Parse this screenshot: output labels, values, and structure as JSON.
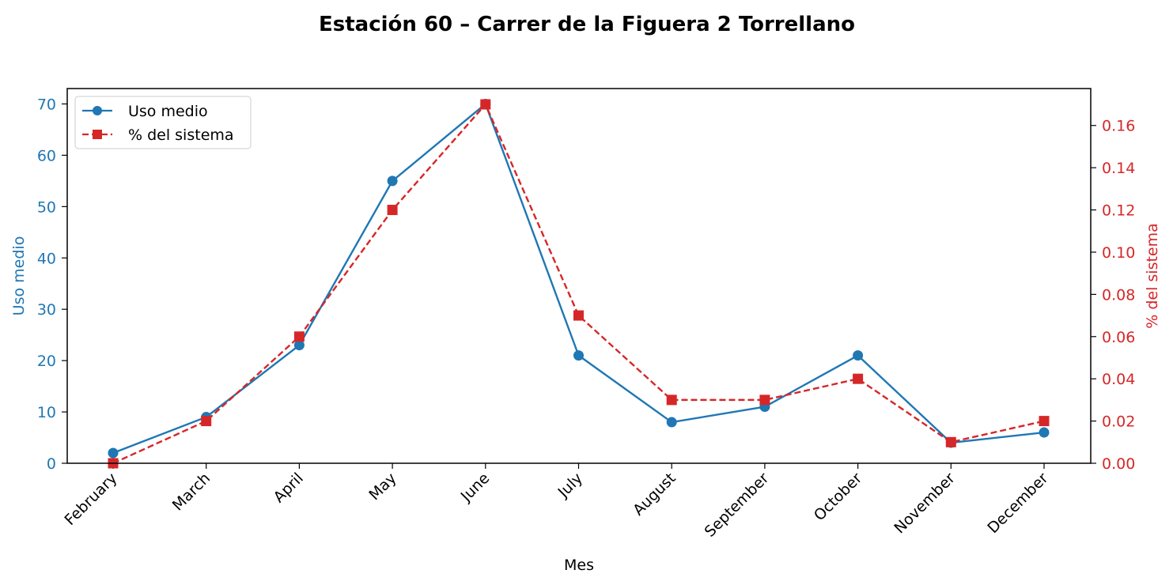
{
  "chart_data": {
    "type": "line",
    "title": "Estación 60 – Carrer de la Figuera 2 Torrellano",
    "xlabel": "Mes",
    "ylabel_left": "Uso medio",
    "ylabel_right": "% del sistema",
    "categories": [
      "February",
      "March",
      "April",
      "May",
      "June",
      "July",
      "August",
      "September",
      "October",
      "November",
      "December"
    ],
    "series": [
      {
        "name": "Uso medio",
        "axis": "left",
        "color": "#1f77b4",
        "marker": "circle",
        "linestyle": "solid",
        "values": [
          2,
          9,
          23,
          55,
          70,
          21,
          8,
          11,
          21,
          4,
          6
        ]
      },
      {
        "name": "% del sistema",
        "axis": "right",
        "color": "#d62728",
        "marker": "square",
        "linestyle": "dashed",
        "values": [
          0.0,
          0.02,
          0.06,
          0.12,
          0.17,
          0.07,
          0.03,
          0.03,
          0.04,
          0.01,
          0.02
        ]
      }
    ],
    "ylim_left": [
      0,
      73
    ],
    "yticks_left": [
      "0",
      "10",
      "20",
      "30",
      "40",
      "50",
      "60",
      "70"
    ],
    "ylim_right": [
      0,
      0.1775
    ],
    "yticks_right": [
      "0.00",
      "0.02",
      "0.04",
      "0.06",
      "0.08",
      "0.10",
      "0.12",
      "0.14",
      "0.16"
    ],
    "grid": false,
    "legend_position": "top-left"
  }
}
